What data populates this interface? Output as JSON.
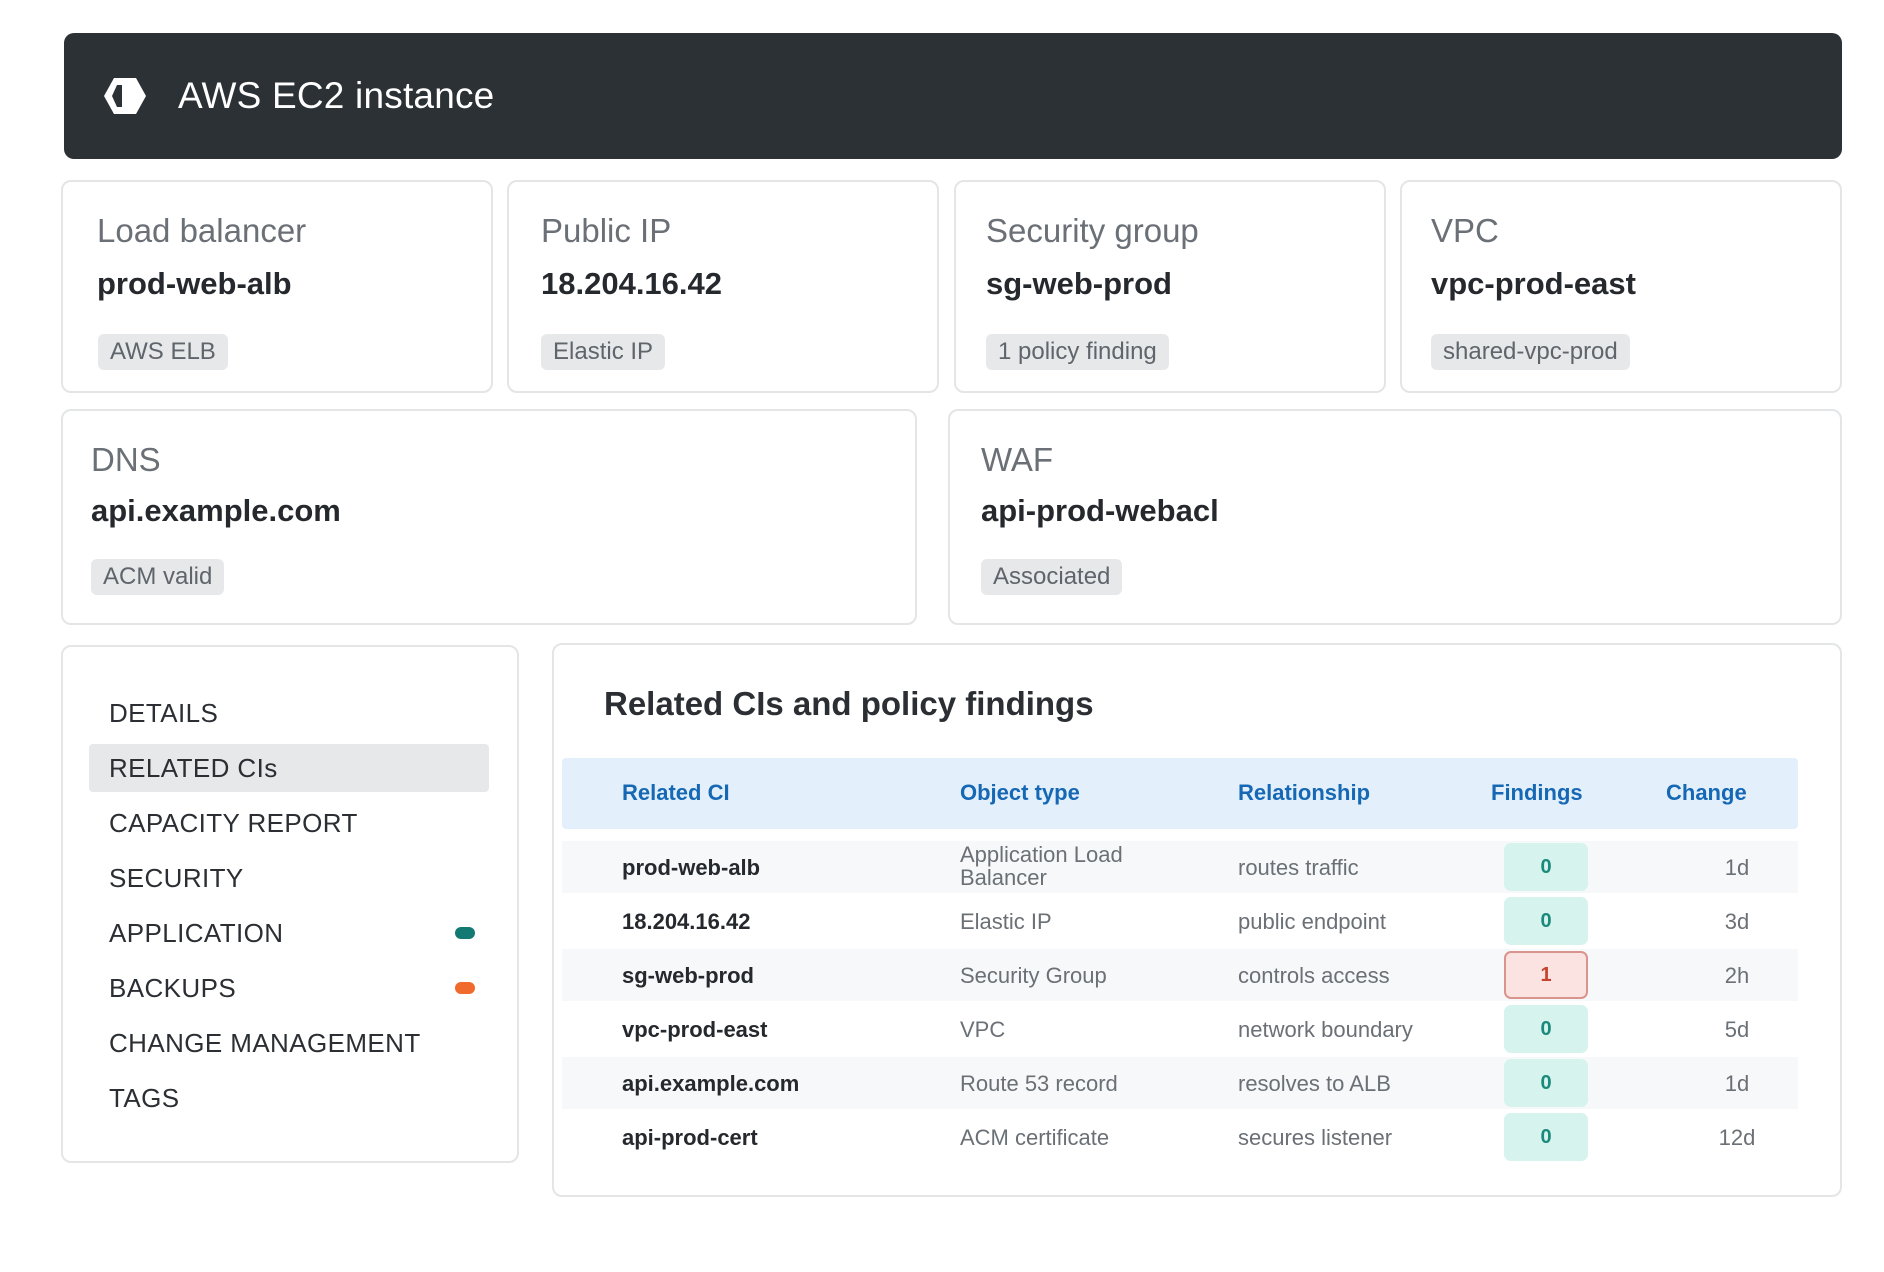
{
  "header": {
    "title": "AWS EC2 instance",
    "icon": "aws-ec2-icon"
  },
  "cards": [
    {
      "label": "Load balancer",
      "value": "prod-web-alb",
      "tag": "AWS ELB"
    },
    {
      "label": "Public IP",
      "value": "18.204.16.42",
      "tag": "Elastic IP"
    },
    {
      "label": "Security group",
      "value": "sg-web-prod",
      "tag": "1 policy finding"
    },
    {
      "label": "VPC",
      "value": "vpc-prod-east",
      "tag": "shared-vpc-prod"
    },
    {
      "label": "DNS",
      "value": "api.example.com",
      "tag": "ACM valid"
    },
    {
      "label": "WAF",
      "value": "api-prod-webacl",
      "tag": "Associated"
    }
  ],
  "nav": {
    "items": [
      {
        "label": "DETAILS"
      },
      {
        "label": "RELATED CIs",
        "active": true
      },
      {
        "label": "CAPACITY REPORT"
      },
      {
        "label": "SECURITY"
      },
      {
        "label": "APPLICATION",
        "dot": "#127a72"
      },
      {
        "label": "BACKUPS",
        "dot": "#ef6a2c"
      },
      {
        "label": "CHANGE MANAGEMENT"
      },
      {
        "label": "TAGS"
      }
    ]
  },
  "panel": {
    "title": "Related CIs and policy findings",
    "columns": [
      "Related CI",
      "Object type",
      "Relationship",
      "Findings",
      "Change"
    ],
    "rows": [
      {
        "ci": "prod-web-alb",
        "type": "Application Load Balancer",
        "rel": "routes traffic",
        "findings": "0",
        "change": "1d"
      },
      {
        "ci": "18.204.16.42",
        "type": "Elastic IP",
        "rel": "public endpoint",
        "findings": "0",
        "change": "3d"
      },
      {
        "ci": "sg-web-prod",
        "type": "Security Group",
        "rel": "controls access",
        "findings": "1",
        "change": "2h"
      },
      {
        "ci": "vpc-prod-east",
        "type": "VPC",
        "rel": "network boundary",
        "findings": "0",
        "change": "5d"
      },
      {
        "ci": "api.example.com",
        "type": "Route 53 record",
        "rel": "resolves to ALB",
        "findings": "0",
        "change": "1d"
      },
      {
        "ci": "api-prod-cert",
        "type": "ACM certificate",
        "rel": "secures listener",
        "findings": "0",
        "change": "12d"
      }
    ]
  },
  "colors": {
    "header_bg": "#2c3135",
    "table_head_bg": "#e3f0fb",
    "link_blue": "#1668b4",
    "ok_badge": "#d6f3ee",
    "warn_badge": "#fbe3e1"
  }
}
